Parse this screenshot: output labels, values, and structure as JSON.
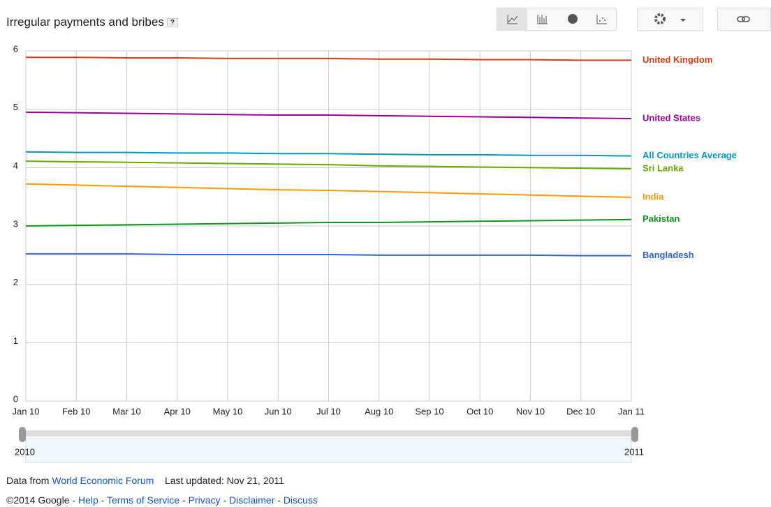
{
  "header": {
    "title": "Irregular payments and bribes",
    "help": "?"
  },
  "chart_data": {
    "type": "line",
    "categories": [
      "Jan 10",
      "Feb 10",
      "Mar 10",
      "Apr 10",
      "May 10",
      "Jun 10",
      "Jul 10",
      "Aug 10",
      "Sep 10",
      "Oct 10",
      "Nov 10",
      "Dec 10",
      "Jan 11"
    ],
    "series": [
      {
        "name": "United Kingdom",
        "color": "#dc3912",
        "values": [
          5.89,
          5.89,
          5.88,
          5.88,
          5.87,
          5.87,
          5.87,
          5.86,
          5.86,
          5.85,
          5.85,
          5.84,
          5.84
        ]
      },
      {
        "name": "United States",
        "color": "#990099",
        "values": [
          4.95,
          4.94,
          4.93,
          4.92,
          4.91,
          4.9,
          4.9,
          4.89,
          4.88,
          4.87,
          4.86,
          4.85,
          4.84
        ]
      },
      {
        "name": "All Countries Average",
        "color": "#0099c6",
        "values": [
          4.27,
          4.26,
          4.26,
          4.25,
          4.25,
          4.24,
          4.24,
          4.23,
          4.22,
          4.22,
          4.21,
          4.21,
          4.2
        ]
      },
      {
        "name": "Sri Lanka",
        "color": "#66aa00",
        "values": [
          4.11,
          4.1,
          4.09,
          4.08,
          4.07,
          4.06,
          4.05,
          4.03,
          4.02,
          4.01,
          4.0,
          3.99,
          3.98
        ]
      },
      {
        "name": "India",
        "color": "#ff9900",
        "values": [
          3.72,
          3.7,
          3.68,
          3.66,
          3.64,
          3.62,
          3.61,
          3.59,
          3.57,
          3.55,
          3.53,
          3.51,
          3.49
        ]
      },
      {
        "name": "Pakistan",
        "color": "#109618",
        "values": [
          3.0,
          3.01,
          3.02,
          3.03,
          3.04,
          3.05,
          3.06,
          3.06,
          3.07,
          3.08,
          3.09,
          3.1,
          3.11
        ]
      },
      {
        "name": "Bangladesh",
        "color": "#3366cc",
        "values": [
          2.52,
          2.52,
          2.52,
          2.51,
          2.51,
          2.51,
          2.51,
          2.5,
          2.5,
          2.5,
          2.5,
          2.49,
          2.49
        ]
      }
    ],
    "ylim": [
      0,
      6
    ],
    "yticks": [
      0,
      1,
      2,
      3,
      4,
      5,
      6
    ],
    "grid": true
  },
  "timeline": {
    "start": "2010",
    "end": "2011"
  },
  "footer": {
    "source_prefix": "Data from",
    "source": "World Economic Forum",
    "updated": "Last updated: Nov 21, 2011",
    "copyright": "©2014 Google",
    "separator": "-",
    "links": [
      "Help",
      "Terms of Service",
      "Privacy",
      "Disclaimer",
      "Discuss"
    ]
  }
}
